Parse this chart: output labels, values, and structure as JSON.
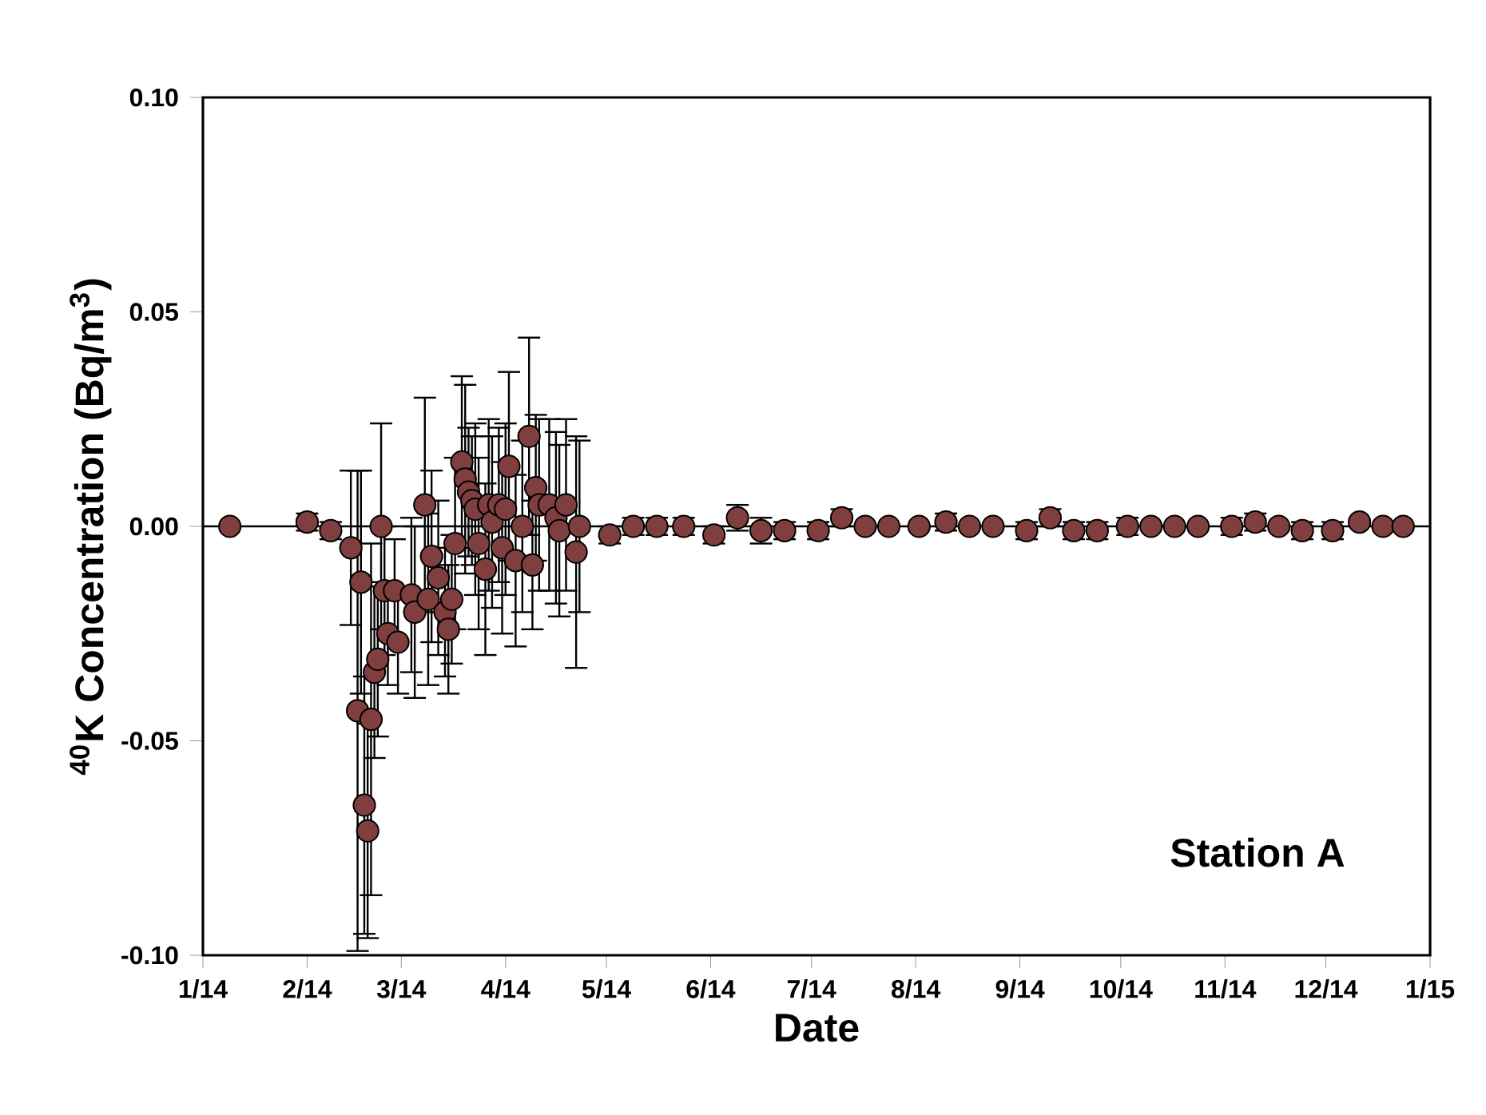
{
  "chart_data": {
    "type": "scatter",
    "xlabel": "Date",
    "ylabel": "$^{40}$K Concentration (Bq/m$^{3}$)",
    "annotations": [
      "Station A"
    ],
    "xlim": [
      "2014-01-01",
      "2015-01-01"
    ],
    "xticks": [
      {
        "value": "2014-01-01",
        "label": "1/14"
      },
      {
        "value": "2014-02-01",
        "label": "2/14"
      },
      {
        "value": "2014-03-01",
        "label": "3/14"
      },
      {
        "value": "2014-04-01",
        "label": "4/14"
      },
      {
        "value": "2014-05-01",
        "label": "5/14"
      },
      {
        "value": "2014-06-01",
        "label": "6/14"
      },
      {
        "value": "2014-07-01",
        "label": "7/14"
      },
      {
        "value": "2014-08-01",
        "label": "8/14"
      },
      {
        "value": "2014-09-01",
        "label": "9/14"
      },
      {
        "value": "2014-10-01",
        "label": "10/14"
      },
      {
        "value": "2014-11-01",
        "label": "11/14"
      },
      {
        "value": "2014-12-01",
        "label": "12/14"
      },
      {
        "value": "2015-01-01",
        "label": "1/15"
      }
    ],
    "ylim": [
      -0.1,
      0.1
    ],
    "yticks": [
      {
        "value": -0.1,
        "label": "-0.10"
      },
      {
        "value": -0.05,
        "label": "-0.05"
      },
      {
        "value": 0,
        "label": "0.00"
      },
      {
        "value": 0.05,
        "label": "0.05"
      },
      {
        "value": 0.1,
        "label": "0.10"
      }
    ],
    "ref_lines": [
      {
        "axis": "y",
        "value": 0,
        "color": "#000000"
      }
    ],
    "marker": "circle",
    "series": [
      {
        "color": "#7f3f3f",
        "x": [
          "2014-01-09",
          "2014-02-01",
          "2014-02-08",
          "2014-02-14",
          "2014-02-16",
          "2014-02-17",
          "2014-02-18",
          "2014-02-19",
          "2014-02-20",
          "2014-02-21",
          "2014-02-22",
          "2014-02-23",
          "2014-02-24",
          "2014-02-25",
          "2014-02-27",
          "2014-02-28",
          "2014-03-04",
          "2014-03-05",
          "2014-03-08",
          "2014-03-09",
          "2014-03-10",
          "2014-03-12",
          "2014-03-14",
          "2014-03-15",
          "2014-03-16",
          "2014-03-17",
          "2014-03-19",
          "2014-03-20",
          "2014-03-21",
          "2014-03-22",
          "2014-03-23",
          "2014-03-24",
          "2014-03-26",
          "2014-03-27",
          "2014-03-28",
          "2014-03-30",
          "2014-03-31",
          "2014-04-01",
          "2014-04-02",
          "2014-04-04",
          "2014-04-06",
          "2014-04-08",
          "2014-04-09",
          "2014-04-10",
          "2014-04-11",
          "2014-04-14",
          "2014-04-16",
          "2014-04-17",
          "2014-04-19",
          "2014-04-22",
          "2014-04-23",
          "2014-05-02",
          "2014-05-09",
          "2014-05-16",
          "2014-05-24",
          "2014-06-02",
          "2014-06-09",
          "2014-06-16",
          "2014-06-23",
          "2014-07-03",
          "2014-07-10",
          "2014-07-17",
          "2014-07-24",
          "2014-08-02",
          "2014-08-10",
          "2014-08-17",
          "2014-08-24",
          "2014-09-03",
          "2014-09-10",
          "2014-09-17",
          "2014-09-24",
          "2014-10-03",
          "2014-10-10",
          "2014-10-17",
          "2014-10-24",
          "2014-11-03",
          "2014-11-10",
          "2014-11-17",
          "2014-11-24",
          "2014-12-03",
          "2014-12-11",
          "2014-12-18",
          "2014-12-24"
        ],
        "values": [
          0.0,
          0.001,
          -0.001,
          -0.005,
          -0.043,
          -0.013,
          -0.065,
          -0.071,
          -0.045,
          -0.034,
          -0.031,
          0.0,
          -0.015,
          -0.025,
          -0.015,
          -0.027,
          -0.016,
          -0.02,
          0.005,
          -0.017,
          -0.007,
          -0.012,
          -0.02,
          -0.024,
          -0.017,
          -0.004,
          0.015,
          0.011,
          0.008,
          0.006,
          0.004,
          -0.004,
          -0.01,
          0.005,
          0.001,
          0.005,
          -0.005,
          0.004,
          0.014,
          -0.008,
          0.0,
          0.021,
          -0.009,
          0.009,
          0.005,
          0.005,
          0.002,
          -0.001,
          0.005,
          -0.006,
          0.0,
          -0.002,
          0.0,
          0.0,
          0.0,
          -0.002,
          0.002,
          -0.001,
          -0.001,
          -0.001,
          0.002,
          0.0,
          0.0,
          0.0,
          0.001,
          0.0,
          0.0,
          -0.001,
          0.002,
          -0.001,
          -0.001,
          0.0,
          0.0,
          0.0,
          0.0,
          0.0,
          0.001,
          0.0,
          -0.001,
          -0.001,
          0.001,
          0.0,
          0.0
        ],
        "errors": [
          null,
          0.002,
          0.002,
          0.018,
          0.056,
          0.026,
          0.03,
          0.025,
          0.041,
          0.02,
          0.018,
          0.024,
          0.015,
          0.012,
          0.012,
          0.012,
          0.018,
          0.02,
          0.025,
          0.02,
          0.02,
          0.018,
          0.015,
          0.015,
          0.015,
          0.02,
          0.02,
          0.022,
          0.015,
          0.015,
          0.02,
          0.02,
          0.02,
          0.02,
          0.02,
          0.018,
          0.02,
          0.02,
          0.022,
          0.02,
          0.02,
          0.023,
          0.015,
          0.017,
          0.02,
          0.02,
          0.02,
          0.02,
          0.02,
          0.027,
          0.02,
          0.002,
          0.002,
          0.002,
          0.002,
          0.002,
          0.003,
          0.003,
          0.002,
          0.002,
          0.002,
          null,
          null,
          null,
          0.002,
          null,
          null,
          0.002,
          0.002,
          0.002,
          0.002,
          0.002,
          null,
          null,
          null,
          0.002,
          0.002,
          null,
          0.002,
          0.002,
          null,
          null,
          null
        ]
      }
    ]
  }
}
